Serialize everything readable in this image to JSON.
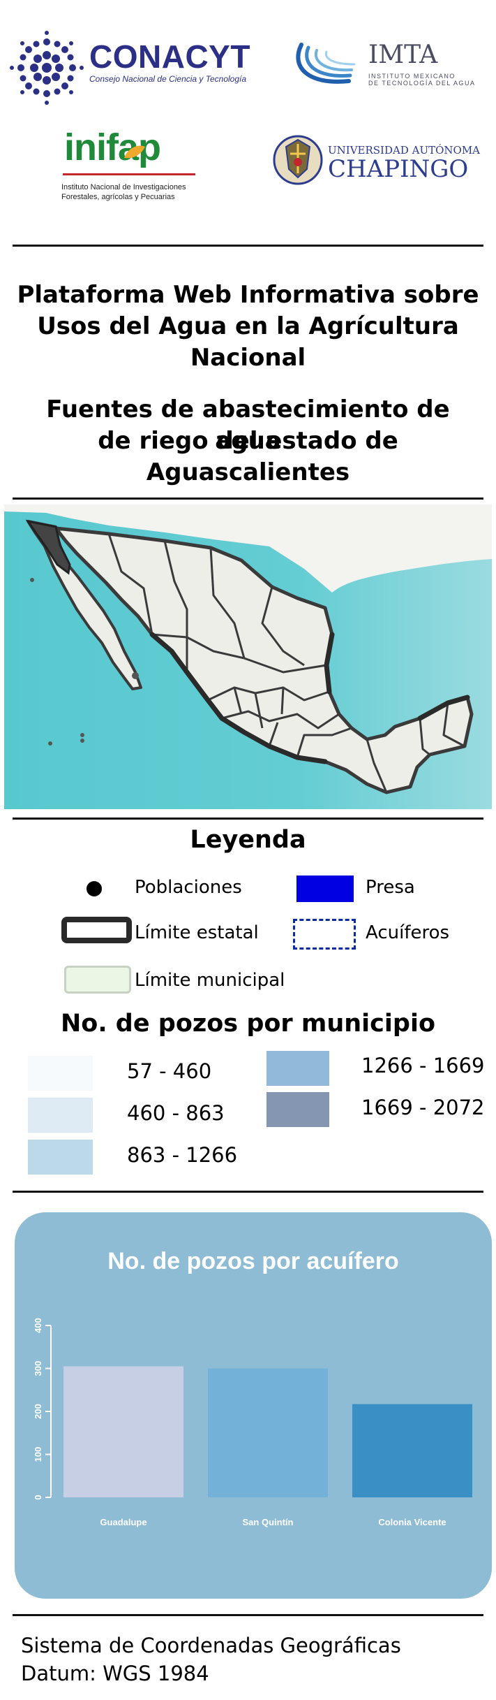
{
  "logos": {
    "conacyt": {
      "name": "CONACYT",
      "subtitle": "Consejo Nacional de Ciencia y Tecnología"
    },
    "imta": {
      "name": "IMTA",
      "subtitle_line1": "INSTITUTO MEXICANO",
      "subtitle_line2": "DE TECNOLOGÍA DEL AGUA"
    },
    "inifap": {
      "name": "inifap",
      "subtitle_line1": "Instituto Nacional de Investigaciones",
      "subtitle_line2": "Forestales, agrícolas y Pecuarias"
    },
    "chapingo": {
      "university": "UNIVERSIDAD AUTÓNOMA",
      "name": "CHAPINGO"
    }
  },
  "title": {
    "platform_line1": "Plataforma Web Informativa sobre",
    "platform_line2": "Usos del Agua en la Agrícultura",
    "platform_line3": "Nacional",
    "map_line1": "Fuentes de abastecimiento de agua",
    "map_line2": "de riego del estado de",
    "map_line3": "Aguascalientes"
  },
  "legend": {
    "heading": "Leyenda",
    "poblaciones": "Poblaciones",
    "presa": "Presa",
    "limite_estatal": "Límite estatal",
    "acuiferos": "Acuíferos",
    "limite_municipal": "Límite municipal",
    "wells_heading": "No. de pozos por municipio",
    "ranges": [
      {
        "label": "57 - 460",
        "color": "#f6fafd"
      },
      {
        "label": "460 - 863",
        "color": "#deebf5"
      },
      {
        "label": "863 - 1266",
        "color": "#bcd9ea"
      },
      {
        "label": "1266 - 1669",
        "color": "#93b9da"
      },
      {
        "label": "1669 - 2072",
        "color": "#8596b3"
      }
    ],
    "colors": {
      "presa": "#0000e0",
      "acuiferos": "#0a2aa0",
      "municipal_fill": "#e9f7e4"
    }
  },
  "chart_data": {
    "type": "bar",
    "title": "No. de pozos por acuífero",
    "categories": [
      "Guadalupe",
      "San Quintín",
      "Colonia Vicente"
    ],
    "values": [
      305,
      300,
      217
    ],
    "ylim": [
      0,
      400
    ],
    "yticks": [
      "0",
      "100",
      "200",
      "300",
      "400"
    ],
    "colors": [
      "#c7cfe4",
      "#74b1d8",
      "#3a8fc4"
    ],
    "panel_color": "#8ebcd4"
  },
  "footer": {
    "line1": "Sistema de Coordenadas Geográficas",
    "line2": "Datum: WGS 1984"
  },
  "map": {
    "sea_color": "#5ccad1",
    "land_color": "#eeeee9",
    "border_color": "#3a3a3a"
  }
}
